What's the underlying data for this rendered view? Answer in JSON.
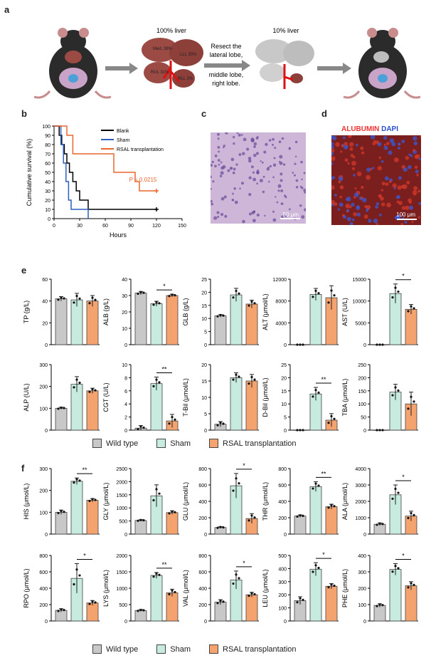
{
  "panel_labels": {
    "a": "a",
    "b": "b",
    "c": "c",
    "d": "d",
    "e": "e",
    "f": "f"
  },
  "schematic": {
    "liver_100": "100% liver",
    "liver_10": "10% liver",
    "lobes": [
      "Med. 38%",
      "LLL 30%",
      "RUL 31%",
      "RLL 2%"
    ],
    "resect_text": [
      "Resect the",
      "lateral lobe,",
      "middle lobe,",
      "right lobe."
    ]
  },
  "micro_c": {
    "scalebar": "50 μm"
  },
  "micro_d": {
    "title_red": "ALUBUMIN",
    "title_blue": "DAPI",
    "scalebar": "100 μm"
  },
  "colors": {
    "wild_type": "#c8c8c8",
    "sham": "#c7ecdf",
    "rsal": "#f4a36f",
    "blank": "#000000",
    "sham_line": "#2f5fbd",
    "rsal_line": "#e9662e"
  },
  "legend": {
    "wild_type": "Wild type",
    "sham": "Sham",
    "rsal": "RSAL transplantation"
  },
  "chart_data": [
    {
      "type": "line",
      "id": "survival",
      "ylabel": "Cumulative survival (%)",
      "xlabel": "Hours",
      "xlim": [
        0,
        150
      ],
      "ylim": [
        0,
        100
      ],
      "xticks": [
        0,
        30,
        60,
        90,
        120,
        150
      ],
      "yticks": [
        0,
        10,
        20,
        30,
        40,
        50,
        60,
        70,
        80,
        90,
        100
      ],
      "annotation": "P = 0.0215",
      "series": [
        {
          "name": "Blank",
          "color": "#000000",
          "steps": [
            [
              0,
              100
            ],
            [
              6,
              90
            ],
            [
              9,
              80
            ],
            [
              12,
              70
            ],
            [
              15,
              60
            ],
            [
              18,
              50
            ],
            [
              22,
              40
            ],
            [
              26,
              30
            ],
            [
              30,
              20
            ],
            [
              40,
              10
            ],
            [
              120,
              10
            ]
          ]
        },
        {
          "name": "Sham",
          "color": "#2f5fbd",
          "steps": [
            [
              0,
              100
            ],
            [
              8,
              80
            ],
            [
              11,
              60
            ],
            [
              14,
              40
            ],
            [
              17,
              20
            ],
            [
              20,
              10
            ],
            [
              40,
              0
            ]
          ]
        },
        {
          "name": "RSAL transplantation",
          "color": "#e9662e",
          "steps": [
            [
              0,
              100
            ],
            [
              15,
              90
            ],
            [
              22,
              70
            ],
            [
              70,
              50
            ],
            [
              95,
              40
            ],
            [
              100,
              30
            ],
            [
              120,
              30
            ]
          ]
        }
      ]
    },
    {
      "type": "bar",
      "id": "TP",
      "ylabel": "TP (g/L)",
      "ylim": [
        0,
        60
      ],
      "yticks": [
        0,
        20,
        40,
        60
      ],
      "values": [
        42,
        41,
        40
      ],
      "errors": [
        2,
        6,
        5
      ],
      "sig": ""
    },
    {
      "type": "bar",
      "id": "ALB",
      "ylabel": "ALB (g/L)",
      "ylim": [
        0,
        40
      ],
      "yticks": [
        0,
        10,
        20,
        30,
        40
      ],
      "values": [
        31.5,
        25,
        30
      ],
      "errors": [
        1,
        1.5,
        0.8
      ],
      "sig": "*"
    },
    {
      "type": "bar",
      "id": "GLB",
      "ylabel": "GLB (g/L)",
      "ylim": [
        0,
        25
      ],
      "yticks": [
        0,
        5,
        10,
        15,
        20,
        25
      ],
      "values": [
        11,
        19,
        15.5
      ],
      "errors": [
        0.5,
        2.5,
        1.5
      ],
      "sig": ""
    },
    {
      "type": "bar",
      "id": "ALT",
      "ylabel": "ALT (μmol/L)",
      "ylim": [
        0,
        12000
      ],
      "yticks": [
        0,
        4000,
        8000,
        12000
      ],
      "values": [
        0,
        9200,
        8600
      ],
      "errors": [
        0,
        1100,
        2200
      ],
      "sig": ""
    },
    {
      "type": "bar",
      "id": "AST",
      "ylabel": "AST (U/L)",
      "ylim": [
        0,
        15000
      ],
      "yticks": [
        0,
        5000,
        10000,
        15000
      ],
      "values": [
        0,
        11700,
        8100
      ],
      "errors": [
        0,
        2200,
        1100
      ],
      "sig": "*"
    },
    {
      "type": "bar",
      "id": "ALP",
      "ylabel": "ALP (U/L)",
      "ylim": [
        0,
        300
      ],
      "yticks": [
        0,
        100,
        200,
        300
      ],
      "values": [
        100,
        210,
        180
      ],
      "errors": [
        5,
        35,
        12
      ],
      "sig": ""
    },
    {
      "type": "bar",
      "id": "GGT",
      "ylabel": "CGT (U/L)",
      "ylim": [
        0,
        10
      ],
      "yticks": [
        0,
        2,
        4,
        6,
        8,
        10
      ],
      "values": [
        0.3,
        7.1,
        1.4
      ],
      "errors": [
        0.4,
        1.0,
        1.0
      ],
      "sig": "**"
    },
    {
      "type": "bar",
      "id": "TBIL",
      "ylabel": "T-Bil (μmol/L)",
      "ylim": [
        0,
        20
      ],
      "yticks": [
        0,
        5,
        10,
        15,
        20
      ],
      "values": [
        1.8,
        16,
        15
      ],
      "errors": [
        0.8,
        1.5,
        2
      ],
      "sig": ""
    },
    {
      "type": "bar",
      "id": "DBIL",
      "ylabel": "D-Bil (μmol/L)",
      "ylim": [
        0,
        25
      ],
      "yticks": [
        0,
        5,
        10,
        15,
        20,
        25
      ],
      "values": [
        0,
        13.8,
        3.8
      ],
      "errors": [
        0,
        2.5,
        2.5
      ],
      "sig": "**"
    },
    {
      "type": "bar",
      "id": "TBA",
      "ylabel": "TBA (μmol/L)",
      "ylim": [
        0,
        250
      ],
      "yticks": [
        0,
        50,
        100,
        150,
        200,
        250
      ],
      "values": [
        0,
        145,
        100
      ],
      "errors": [
        0,
        30,
        45
      ],
      "sig": ""
    },
    {
      "type": "bar",
      "id": "HIS",
      "ylabel": "HIS (μmol/L)",
      "ylim": [
        0,
        300
      ],
      "yticks": [
        0,
        100,
        200,
        300
      ],
      "values": [
        100,
        242,
        155
      ],
      "errors": [
        10,
        15,
        8
      ],
      "sig": "**"
    },
    {
      "type": "bar",
      "id": "GLY",
      "ylabel": "GLY (μmol/L)",
      "ylim": [
        0,
        2500
      ],
      "yticks": [
        0,
        500,
        1000,
        1500,
        2000,
        2500
      ],
      "values": [
        520,
        1460,
        820
      ],
      "errors": [
        30,
        420,
        70
      ],
      "sig": ""
    },
    {
      "type": "bar",
      "id": "GLU",
      "ylabel": "GLU (μmol/L)",
      "ylim": [
        0,
        800
      ],
      "yticks": [
        0,
        200,
        400,
        600,
        800
      ],
      "values": [
        80,
        590,
        190
      ],
      "errors": [
        10,
        150,
        60
      ],
      "sig": "*"
    },
    {
      "type": "bar",
      "id": "THR",
      "ylabel": "THR (μmol/L)",
      "ylim": [
        0,
        800
      ],
      "yticks": [
        0,
        200,
        400,
        600,
        800
      ],
      "values": [
        220,
        580,
        335
      ],
      "errors": [
        15,
        60,
        30
      ],
      "sig": "**"
    },
    {
      "type": "bar",
      "id": "ALA",
      "ylabel": "ALA (μmol/L)",
      "ylim": [
        0,
        4000
      ],
      "yticks": [
        0,
        1000,
        2000,
        3000,
        4000
      ],
      "values": [
        600,
        2400,
        1100
      ],
      "errors": [
        80,
        600,
        300
      ],
      "sig": "*"
    },
    {
      "type": "bar",
      "id": "PRO",
      "ylabel": "RPO (μmol/L)",
      "ylim": [
        0,
        800
      ],
      "yticks": [
        0,
        200,
        400,
        600,
        800
      ],
      "values": [
        130,
        520,
        220
      ],
      "errors": [
        20,
        180,
        30
      ],
      "sig": "*"
    },
    {
      "type": "bar",
      "id": "LYS",
      "ylabel": "LYS (μmol/L)",
      "ylim": [
        0,
        2000
      ],
      "yticks": [
        0,
        500,
        1000,
        1500,
        2000
      ],
      "values": [
        320,
        1390,
        860
      ],
      "errors": [
        30,
        90,
        110
      ],
      "sig": "**"
    },
    {
      "type": "bar",
      "id": "VAL",
      "ylabel": "VAL (μmol/L)",
      "ylim": [
        0,
        800
      ],
      "yticks": [
        0,
        200,
        400,
        600,
        800
      ],
      "values": [
        230,
        500,
        320
      ],
      "errors": [
        30,
        110,
        30
      ],
      "sig": "*"
    },
    {
      "type": "bar",
      "id": "LEU",
      "ylabel": "LEU (μmol/L)",
      "ylim": [
        0,
        500
      ],
      "yticks": [
        0,
        100,
        200,
        300,
        400,
        500
      ],
      "values": [
        155,
        395,
        265
      ],
      "errors": [
        30,
        50,
        20
      ],
      "sig": "*"
    },
    {
      "type": "bar",
      "id": "PHE",
      "ylabel": "PHE (μmol/L)",
      "ylim": [
        0,
        400
      ],
      "yticks": [
        0,
        100,
        200,
        300,
        400
      ],
      "values": [
        95,
        315,
        215
      ],
      "errors": [
        10,
        35,
        25
      ],
      "sig": "*"
    }
  ]
}
